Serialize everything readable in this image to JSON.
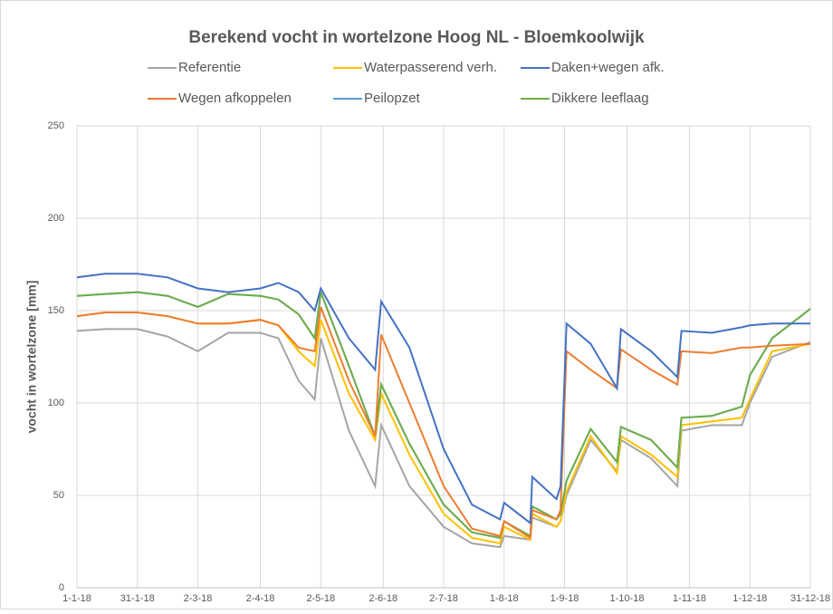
{
  "chart_data": {
    "type": "line",
    "title": "Berekend vocht in wortelzone Hoog NL - Bloemkoolwijk",
    "y_label": "vocht in wortelzone [mm]",
    "x": [
      "2018-01-01",
      "2018-01-15",
      "2018-01-31",
      "2018-02-15",
      "2018-03-02",
      "2018-03-17",
      "2018-04-02",
      "2018-04-11",
      "2018-04-21",
      "2018-04-29",
      "2018-05-02",
      "2018-05-16",
      "2018-05-29",
      "2018-06-01",
      "2018-06-15",
      "2018-07-02",
      "2018-07-16",
      "2018-07-30",
      "2018-08-01",
      "2018-08-14",
      "2018-08-15",
      "2018-08-27",
      "2018-08-29",
      "2018-09-01",
      "2018-09-13",
      "2018-09-26",
      "2018-09-28",
      "2018-10-13",
      "2018-10-26",
      "2018-10-28",
      "2018-11-12",
      "2018-11-27",
      "2018-12-01",
      "2018-12-12",
      "2018-12-31"
    ],
    "xlim": [
      "2018-01-01",
      "2018-12-31"
    ],
    "xticks": [
      {
        "value": "2018-01-01",
        "label": "1-1-18"
      },
      {
        "value": "2018-01-31",
        "label": "31-1-18"
      },
      {
        "value": "2018-03-02",
        "label": "2-3-18"
      },
      {
        "value": "2018-04-02",
        "label": "2-4-18"
      },
      {
        "value": "2018-05-02",
        "label": "2-5-18"
      },
      {
        "value": "2018-06-02",
        "label": "2-6-18"
      },
      {
        "value": "2018-07-02",
        "label": "2-7-18"
      },
      {
        "value": "2018-08-01",
        "label": "1-8-18"
      },
      {
        "value": "2018-08-31",
        "label": "1-9-18"
      },
      {
        "value": "2018-10-01",
        "label": "1-10-18"
      },
      {
        "value": "2018-11-01",
        "label": "1-11-18"
      },
      {
        "value": "2018-12-01",
        "label": "1-12-18"
      },
      {
        "value": "2018-12-31",
        "label": "31-12-18"
      }
    ],
    "ylim": [
      0,
      250
    ],
    "yticks": [
      0,
      50,
      100,
      150,
      200,
      250
    ],
    "grid": true,
    "series": [
      {
        "name": "Referentie",
        "color": "#a5a5a5",
        "values": [
          139,
          140,
          140,
          136,
          128,
          138,
          138,
          135,
          112,
          102,
          135,
          85,
          55,
          88,
          55,
          33,
          24,
          22,
          28,
          26,
          38,
          33,
          36,
          50,
          80,
          63,
          80,
          70,
          55,
          85,
          88,
          88,
          100,
          125,
          133
        ]
      },
      {
        "name": "Waterpasserend verh.",
        "color": "#ffc000",
        "values": [
          147,
          149,
          149,
          147,
          143,
          143,
          145,
          142,
          128,
          120,
          145,
          105,
          80,
          105,
          72,
          40,
          27,
          24,
          33,
          26,
          40,
          33,
          36,
          52,
          82,
          62,
          82,
          72,
          60,
          88,
          90,
          92,
          102,
          128,
          132
        ]
      },
      {
        "name": "Daken+wegen afk.",
        "color": "#4472c4",
        "values": [
          168,
          170,
          170,
          168,
          162,
          160,
          162,
          165,
          160,
          150,
          162,
          135,
          118,
          155,
          130,
          75,
          45,
          37,
          46,
          35,
          60,
          48,
          55,
          143,
          132,
          108,
          140,
          128,
          114,
          139,
          138,
          141,
          142,
          143,
          143
        ]
      },
      {
        "name": "Wegen afkoppelen",
        "color": "#ed7d31",
        "values": [
          147,
          149,
          149,
          147,
          143,
          143,
          145,
          142,
          130,
          128,
          152,
          112,
          82,
          137,
          100,
          55,
          32,
          28,
          36,
          27,
          42,
          37,
          42,
          128,
          118,
          108,
          129,
          118,
          110,
          128,
          127,
          130,
          130,
          131,
          132
        ]
      },
      {
        "name": "Peilopzet",
        "color": "#5b9bd5",
        "values": [
          158,
          159,
          160,
          158,
          152,
          159,
          158,
          156,
          148,
          135,
          160,
          120,
          82,
          110,
          78,
          45,
          30,
          27,
          36,
          28,
          44,
          37,
          40,
          58,
          86,
          68,
          87,
          80,
          65,
          92,
          93,
          98,
          115,
          135,
          151
        ]
      },
      {
        "name": "Dikkere leeflaag",
        "color": "#70ad47",
        "values": [
          158,
          159,
          160,
          158,
          152,
          159,
          158,
          156,
          148,
          135,
          160,
          120,
          82,
          110,
          78,
          45,
          30,
          27,
          36,
          28,
          44,
          37,
          40,
          58,
          86,
          68,
          87,
          80,
          65,
          92,
          93,
          98,
          115,
          135,
          151
        ]
      }
    ]
  }
}
